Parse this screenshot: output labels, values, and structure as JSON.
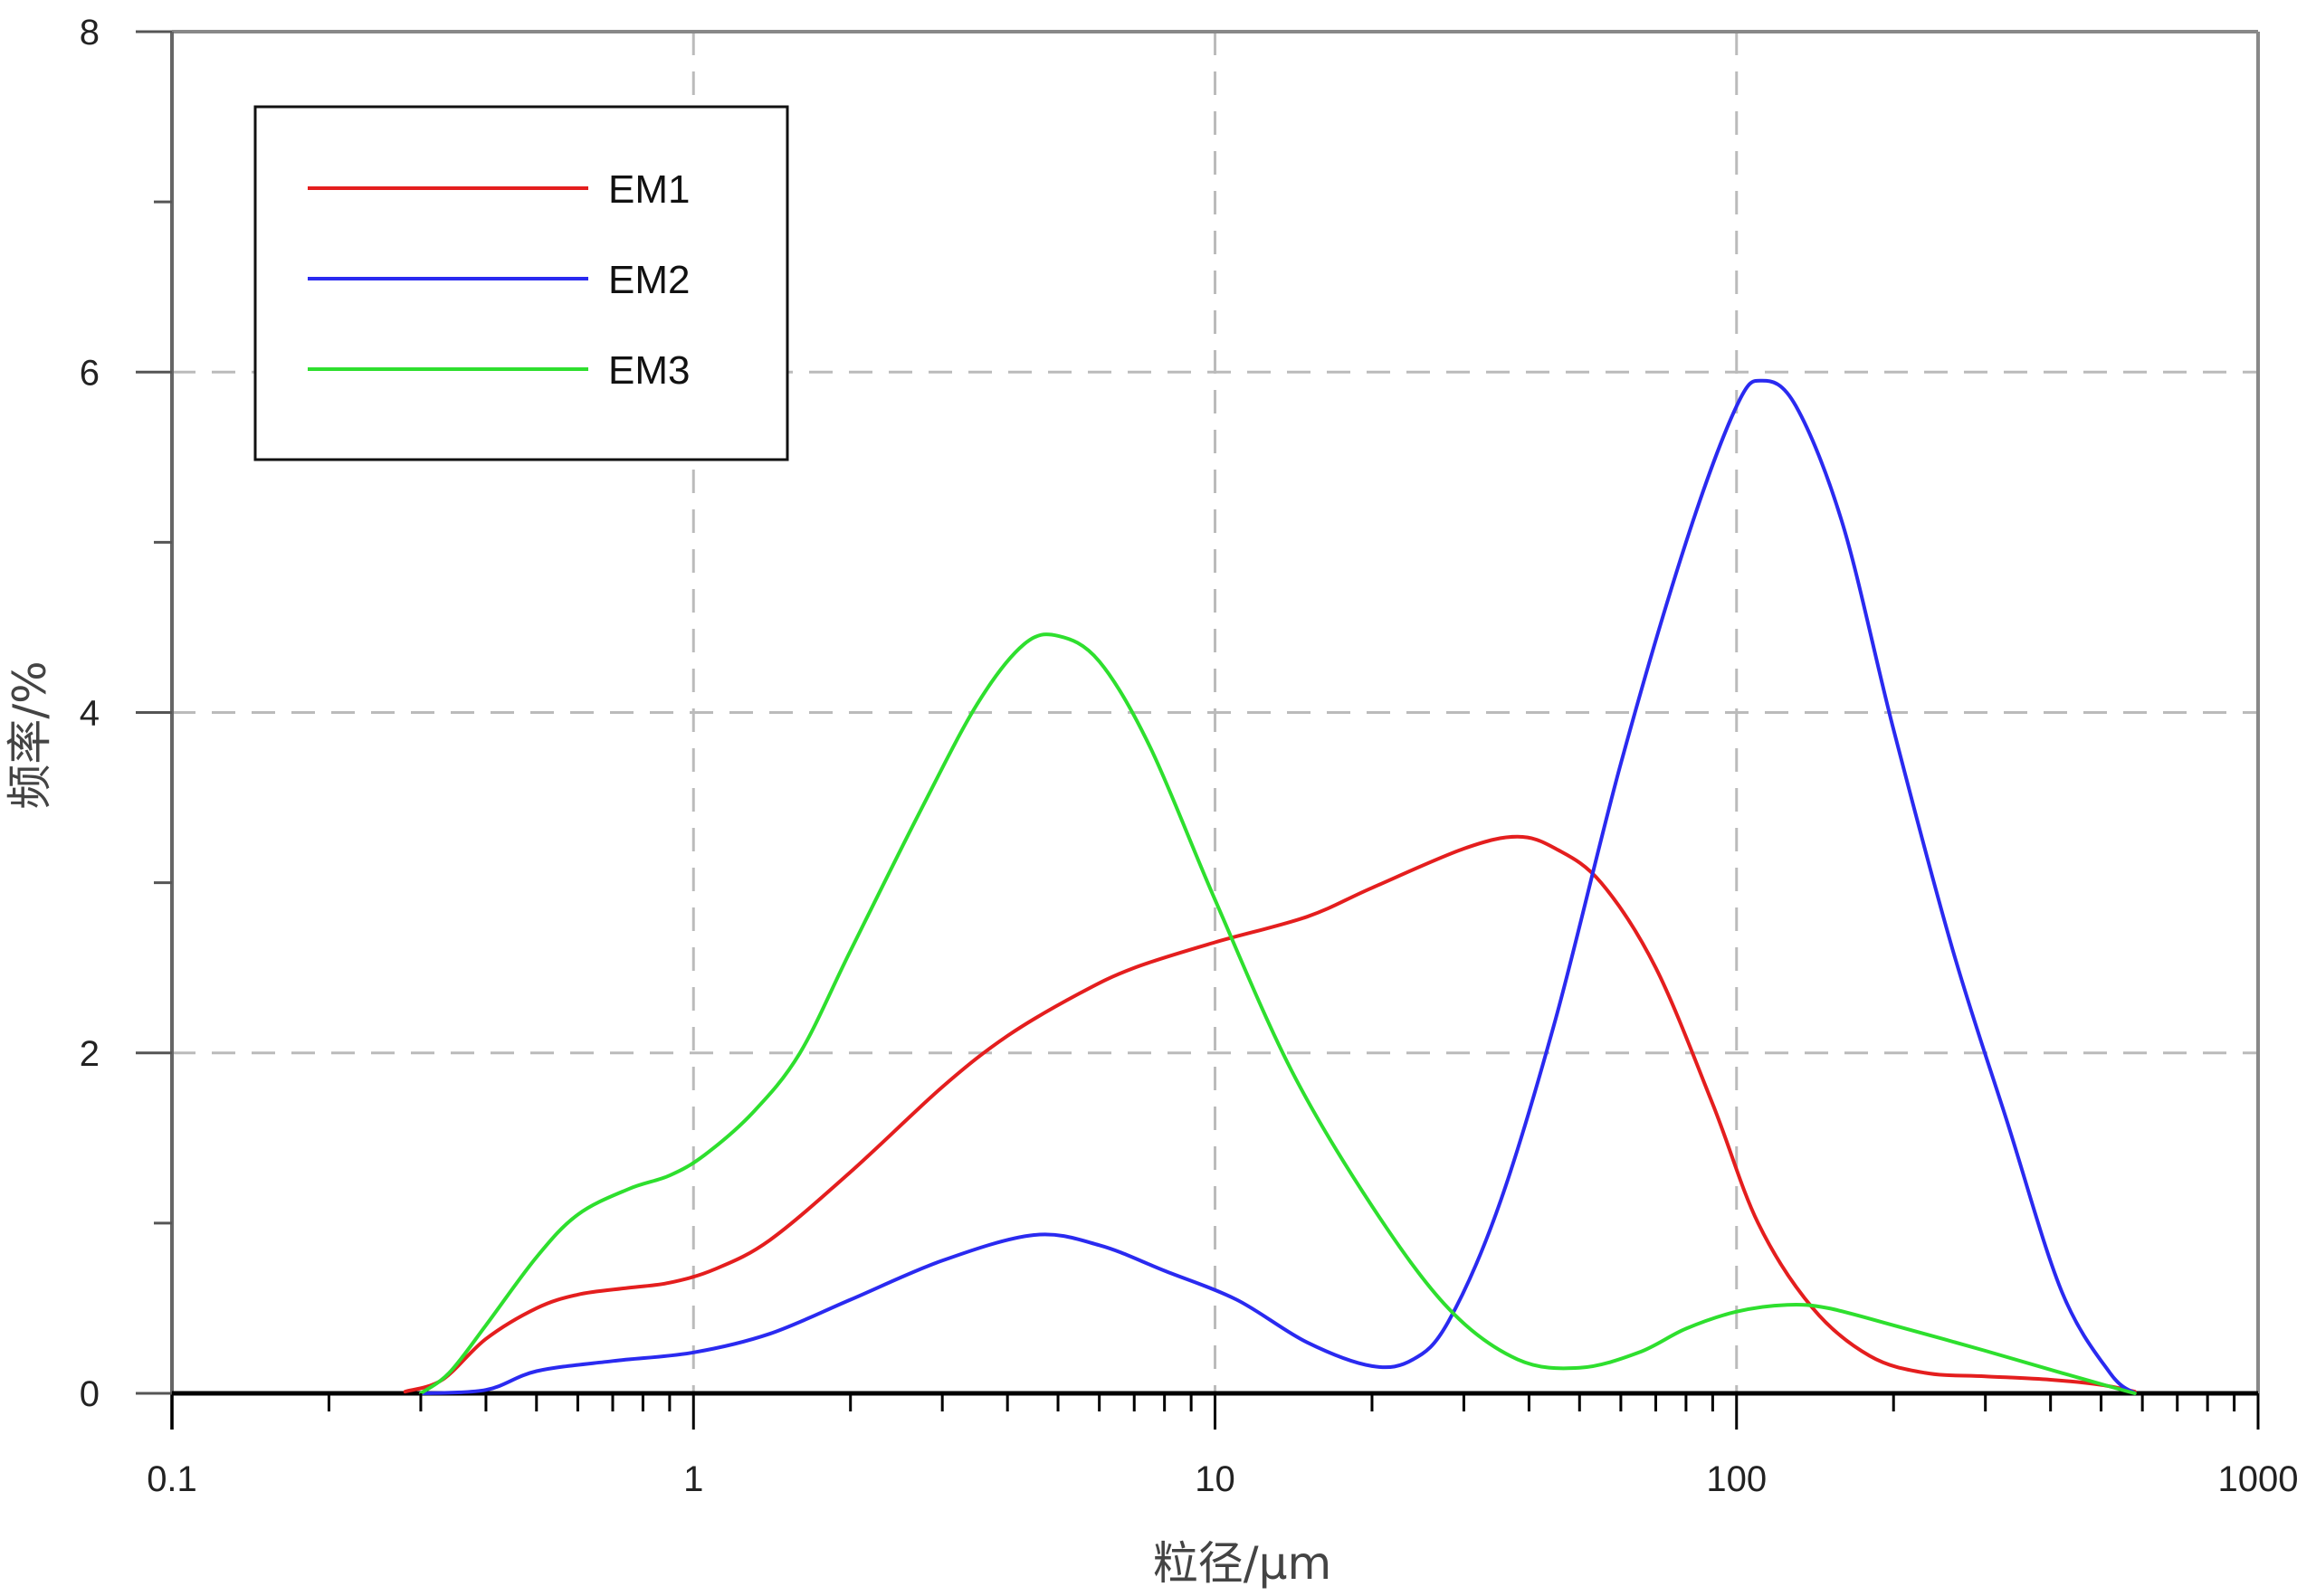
{
  "chart_data": {
    "type": "line",
    "xlabel": "粒径/μm",
    "ylabel": "频率/%",
    "xscale": "log",
    "xlim": [
      0.1,
      1000
    ],
    "ylim": [
      0,
      8
    ],
    "x_ticks": [
      "0.1",
      "1",
      "10",
      "100",
      "1000"
    ],
    "y_ticks": [
      "0",
      "2",
      "4",
      "6",
      "8"
    ],
    "grid": "dashed gray at x = 1, 10, 100 and y = 2, 4, 6",
    "legend_position": "top-left",
    "series": [
      {
        "name": "EM1",
        "color": "#e41e1e",
        "points": [
          [
            0.28,
            0.01
          ],
          [
            0.33,
            0.08
          ],
          [
            0.4,
            0.32
          ],
          [
            0.5,
            0.5
          ],
          [
            0.6,
            0.58
          ],
          [
            0.75,
            0.62
          ],
          [
            0.9,
            0.65
          ],
          [
            1.1,
            0.73
          ],
          [
            1.4,
            0.9
          ],
          [
            2.0,
            1.3
          ],
          [
            3.0,
            1.8
          ],
          [
            4.0,
            2.1
          ],
          [
            5.5,
            2.35
          ],
          [
            7.0,
            2.5
          ],
          [
            10,
            2.65
          ],
          [
            15,
            2.8
          ],
          [
            20,
            2.97
          ],
          [
            30,
            3.2
          ],
          [
            38,
            3.27
          ],
          [
            45,
            3.2
          ],
          [
            55,
            3.0
          ],
          [
            70,
            2.5
          ],
          [
            90,
            1.7
          ],
          [
            110,
            1.0
          ],
          [
            140,
            0.5
          ],
          [
            180,
            0.22
          ],
          [
            230,
            0.12
          ],
          [
            300,
            0.1
          ],
          [
            400,
            0.08
          ],
          [
            500,
            0.05
          ],
          [
            580,
            0.01
          ]
        ]
      },
      {
        "name": "EM2",
        "color": "#2a2af0",
        "points": [
          [
            0.3,
            0.0
          ],
          [
            0.4,
            0.02
          ],
          [
            0.5,
            0.13
          ],
          [
            0.7,
            0.19
          ],
          [
            1.0,
            0.24
          ],
          [
            1.4,
            0.35
          ],
          [
            2.0,
            0.55
          ],
          [
            3.0,
            0.78
          ],
          [
            4.5,
            0.93
          ],
          [
            6.0,
            0.87
          ],
          [
            8.0,
            0.72
          ],
          [
            11,
            0.55
          ],
          [
            15,
            0.3
          ],
          [
            20,
            0.16
          ],
          [
            24,
            0.2
          ],
          [
            28,
            0.42
          ],
          [
            35,
            1.1
          ],
          [
            45,
            2.2
          ],
          [
            60,
            3.7
          ],
          [
            80,
            5.0
          ],
          [
            100,
            5.8
          ],
          [
            112,
            5.95
          ],
          [
            130,
            5.8
          ],
          [
            160,
            5.1
          ],
          [
            200,
            3.9
          ],
          [
            260,
            2.6
          ],
          [
            330,
            1.6
          ],
          [
            420,
            0.6
          ],
          [
            520,
            0.12
          ],
          [
            580,
            0.0
          ]
        ]
      },
      {
        "name": "EM3",
        "color": "#2edf2e",
        "points": [
          [
            0.3,
            0.0
          ],
          [
            0.34,
            0.12
          ],
          [
            0.4,
            0.4
          ],
          [
            0.5,
            0.8
          ],
          [
            0.6,
            1.05
          ],
          [
            0.75,
            1.2
          ],
          [
            0.9,
            1.28
          ],
          [
            1.05,
            1.4
          ],
          [
            1.3,
            1.65
          ],
          [
            1.6,
            2.0
          ],
          [
            2.0,
            2.6
          ],
          [
            2.7,
            3.4
          ],
          [
            3.5,
            4.05
          ],
          [
            4.3,
            4.4
          ],
          [
            5.0,
            4.45
          ],
          [
            6.0,
            4.3
          ],
          [
            7.5,
            3.8
          ],
          [
            10,
            2.9
          ],
          [
            14,
            1.9
          ],
          [
            20,
            1.1
          ],
          [
            28,
            0.5
          ],
          [
            38,
            0.2
          ],
          [
            50,
            0.15
          ],
          [
            65,
            0.24
          ],
          [
            80,
            0.38
          ],
          [
            100,
            0.48
          ],
          [
            125,
            0.52
          ],
          [
            150,
            0.5
          ],
          [
            200,
            0.4
          ],
          [
            300,
            0.25
          ],
          [
            420,
            0.12
          ],
          [
            520,
            0.04
          ],
          [
            580,
            0.0
          ]
        ]
      }
    ]
  }
}
